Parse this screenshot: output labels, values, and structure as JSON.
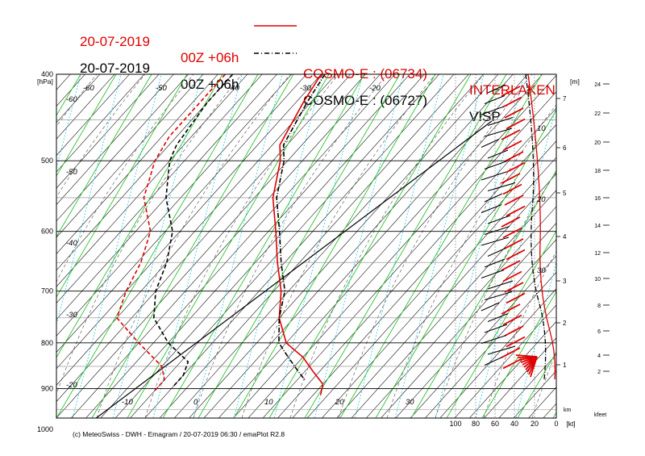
{
  "titles": [
    {
      "date": "20-07-2019",
      "run": "00Z +06h",
      "model": "COSMO-E : (06734)",
      "station": "INTERLAKEN",
      "color": "#e00000",
      "style": "solid"
    },
    {
      "date": "20-07-2019",
      "run": "00Z +06h",
      "model": "COSMO-E : (06727)",
      "station": "VISP",
      "color": "#000000",
      "style": "dashdot"
    }
  ],
  "footer": "(c) MeteoSwiss - DWH - Emagram / 20-07-2019  06:30 / emaPlot R2.8",
  "axes": {
    "pressure_unit": "[hPa]",
    "pressure_ticks": [
      400,
      500,
      600,
      700,
      800,
      900,
      1000
    ],
    "km_unit": "[m]",
    "km_ticks": [
      1,
      2,
      3,
      4,
      5,
      6,
      7
    ],
    "km_footer": "km",
    "kfeet_ticks": [
      2,
      4,
      6,
      8,
      10,
      12,
      14,
      16,
      18,
      20,
      22,
      24
    ],
    "kfeet_footer": "kfeet",
    "wind_unit": "[kt]",
    "wind_ticks": [
      100,
      80,
      60,
      40,
      20,
      0
    ]
  },
  "temperature_labels": {
    "top": [
      "-60",
      "-50",
      "-40",
      "-30",
      "-20"
    ],
    "left": [
      "-60",
      "-50",
      "-40",
      "-30",
      "-20"
    ],
    "bottom": [
      "-10",
      "0",
      "10",
      "20",
      "30"
    ],
    "right": [
      "10",
      "20",
      "30"
    ]
  },
  "chart_data": {
    "type": "line",
    "title": "",
    "xlabel": "",
    "ylabel": "[hPa]",
    "series": [
      {
        "name": "INTERLAKEN temperature",
        "color": "#e00000",
        "points": [
          [
            400,
            -24
          ],
          [
            430,
            -23
          ],
          [
            480,
            -21
          ],
          [
            500,
            -19
          ],
          [
            550,
            -15.5
          ],
          [
            600,
            -11
          ],
          [
            650,
            -7
          ],
          [
            700,
            -3
          ],
          [
            750,
            0
          ],
          [
            800,
            4
          ],
          [
            830,
            8
          ],
          [
            860,
            11
          ],
          [
            890,
            14
          ],
          [
            915,
            15
          ]
        ]
      },
      {
        "name": "INTERLAKEN dew point",
        "color": "#e00000",
        "points": [
          [
            400,
            -37
          ],
          [
            430,
            -37
          ],
          [
            470,
            -37
          ],
          [
            500,
            -36
          ],
          [
            550,
            -33
          ],
          [
            600,
            -28
          ],
          [
            650,
            -25.5
          ],
          [
            700,
            -24
          ],
          [
            750,
            -22
          ],
          [
            800,
            -16
          ],
          [
            850,
            -10
          ],
          [
            880,
            -8
          ],
          [
            905,
            -8
          ]
        ]
      },
      {
        "name": "VISP temperature",
        "color": "#000000",
        "points": [
          [
            400,
            -23.5
          ],
          [
            430,
            -22.5
          ],
          [
            480,
            -20.5
          ],
          [
            500,
            -18.5
          ],
          [
            550,
            -15
          ],
          [
            600,
            -10.5
          ],
          [
            650,
            -6.5
          ],
          [
            700,
            -2.5
          ],
          [
            750,
            0
          ],
          [
            800,
            3
          ],
          [
            830,
            6
          ],
          [
            860,
            9
          ],
          [
            880,
            11
          ]
        ]
      },
      {
        "name": "VISP dew point",
        "color": "#000000",
        "points": [
          [
            400,
            -36
          ],
          [
            430,
            -36
          ],
          [
            480,
            -35
          ],
          [
            500,
            -34
          ],
          [
            550,
            -30
          ],
          [
            600,
            -25
          ],
          [
            650,
            -22
          ],
          [
            700,
            -20
          ],
          [
            750,
            -17
          ],
          [
            800,
            -12
          ],
          [
            840,
            -7
          ],
          [
            870,
            -6
          ],
          [
            895,
            -6
          ]
        ]
      }
    ]
  }
}
